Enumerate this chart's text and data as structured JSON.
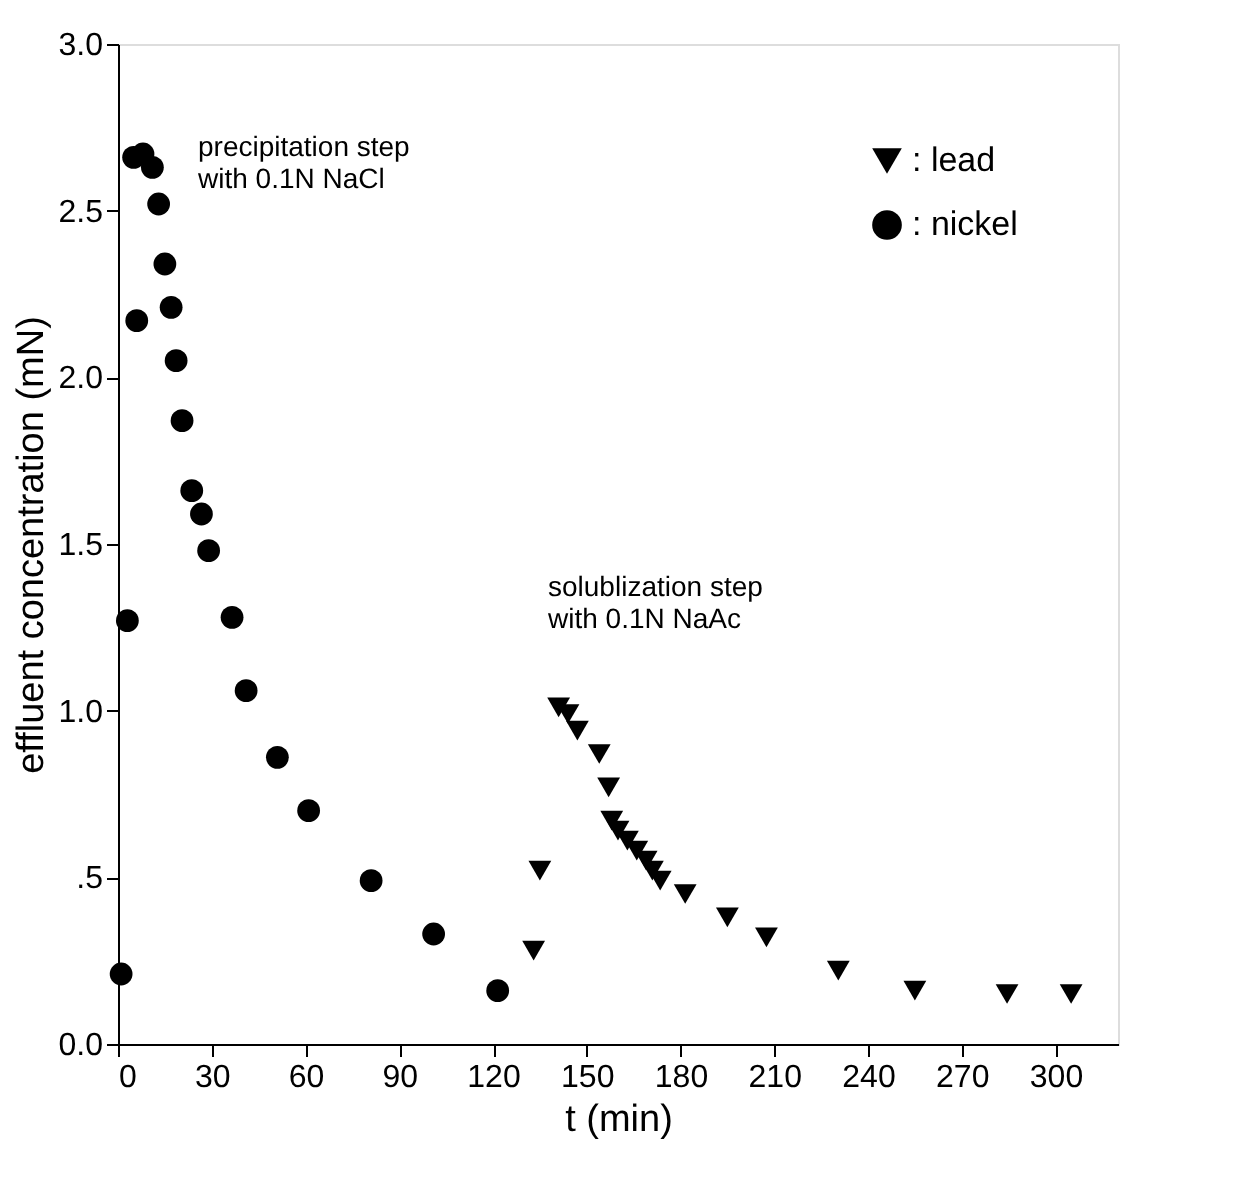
{
  "chart_data": {
    "type": "scatter",
    "xlabel": "t (min)",
    "ylabel": "effluent concentration  (mN)",
    "xlim": [
      0,
      320
    ],
    "xticks": [
      0,
      30,
      60,
      90,
      120,
      150,
      180,
      210,
      240,
      270,
      300
    ],
    "ylim": [
      0,
      3
    ],
    "yticks": [
      {
        "value": 0,
        "label": "0.0"
      },
      {
        "value": 0.5,
        "label": ".5"
      },
      {
        "value": 1,
        "label": "1.0"
      },
      {
        "value": 1.5,
        "label": "1.5"
      },
      {
        "value": 2,
        "label": "2.0"
      },
      {
        "value": 2.5,
        "label": "2.5"
      },
      {
        "value": 3,
        "label": "3.0"
      }
    ],
    "legend": "top right",
    "grid": false,
    "series": [
      {
        "name": ": lead",
        "color": "#000000",
        "marker": "triangle",
        "x": [
          133,
          135,
          141,
          144,
          147,
          154,
          157,
          158,
          160,
          163,
          166,
          169,
          171,
          173.5,
          181.5,
          195,
          207.5,
          230.5,
          255,
          284.5,
          305
        ],
        "values": [
          0.28,
          0.52,
          1.01,
          0.99,
          0.94,
          0.87,
          0.77,
          0.67,
          0.64,
          0.61,
          0.58,
          0.55,
          0.52,
          0.49,
          0.45,
          0.38,
          0.32,
          0.22,
          0.16,
          0.15,
          0.15
        ]
      },
      {
        "name": ": nickel",
        "color": "#000000",
        "marker": "circle",
        "x": [
          1,
          3,
          5,
          6,
          8,
          11,
          13,
          15,
          17,
          18.6,
          20.5,
          23.6,
          26.7,
          29,
          36.5,
          41,
          51,
          61,
          81,
          101,
          121.5
        ],
        "values": [
          0.21,
          1.27,
          2.66,
          2.17,
          2.67,
          2.63,
          2.52,
          2.34,
          2.21,
          2.05,
          1.87,
          1.66,
          1.59,
          1.48,
          1.28,
          1.06,
          0.86,
          0.7,
          0.49,
          0.33,
          0.16
        ]
      }
    ],
    "annotations": [
      "precipitation step\nwith 0.1N NaCl",
      "solublization step\nwith 0.1N NaAc"
    ]
  }
}
